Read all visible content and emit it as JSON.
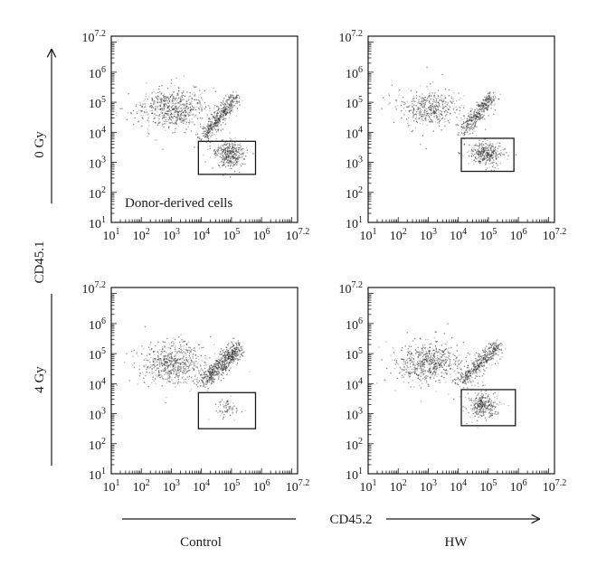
{
  "figure": {
    "row_labels": [
      "0 Gy",
      "4 Gy"
    ],
    "column_labels": [
      "Control",
      "HW"
    ],
    "y_axis_label": "CD45.1",
    "x_axis_label": "CD45.2",
    "gate_annotation": "Donor-derived cells"
  },
  "chart_data": [
    {
      "type": "scatter",
      "panel": "0 Gy / Control",
      "xlabel": "",
      "ylabel": "",
      "x_scale": "log",
      "y_scale": "log",
      "xlim": [
        10,
        15848932
      ],
      "ylim": [
        10,
        15848932
      ],
      "x_ticks": [
        10,
        100,
        1000,
        10000,
        100000,
        1000000,
        15848932
      ],
      "x_tick_labels": [
        [
          "10",
          "1"
        ],
        [
          "10",
          "2"
        ],
        [
          "10",
          "3"
        ],
        [
          "10",
          "4"
        ],
        [
          "10",
          "5"
        ],
        [
          "10",
          "6"
        ],
        [
          "10",
          "7.2"
        ]
      ],
      "y_ticks": [
        10,
        100,
        1000,
        10000,
        100000,
        1000000,
        15848932
      ],
      "y_tick_labels": [
        [
          "10",
          "1"
        ],
        [
          "10",
          "2"
        ],
        [
          "10",
          "3"
        ],
        [
          "10",
          "4"
        ],
        [
          "10",
          "5"
        ],
        [
          "10",
          "6"
        ],
        [
          "10",
          "7.2"
        ]
      ],
      "clusters": [
        {
          "name": "",
          "kind": "blob",
          "center": [
            1000,
            63096
          ],
          "spread": [
            2.2,
            1.6
          ],
          "count": 650
        },
        {
          "name": "",
          "kind": "diagonal",
          "from": [
            10000,
            6310
          ],
          "to": [
            126000,
            158000
          ],
          "width": 0.12,
          "count": 480
        },
        {
          "name": "",
          "kind": "blob",
          "center": [
            79400,
            1995
          ],
          "spread": [
            1.0,
            1.0
          ],
          "count": 380
        }
      ],
      "gate": {
        "x": [
          7943,
          630957
        ],
        "y": [
          398,
          5012
        ]
      },
      "annotation": "Donor-derived cells"
    },
    {
      "type": "scatter",
      "panel": "0 Gy / HW",
      "xlabel": "",
      "ylabel": "",
      "x_scale": "log",
      "y_scale": "log",
      "xlim": [
        10,
        15848932
      ],
      "ylim": [
        10,
        15848932
      ],
      "x_ticks": [
        10,
        100,
        1000,
        10000,
        100000,
        1000000,
        15848932
      ],
      "x_tick_labels": [
        [
          "10",
          "1"
        ],
        [
          "10",
          "2"
        ],
        [
          "10",
          "3"
        ],
        [
          "10",
          "4"
        ],
        [
          "10",
          "5"
        ],
        [
          "10",
          "6"
        ],
        [
          "10",
          "7.2"
        ]
      ],
      "y_ticks": [
        10,
        100,
        1000,
        10000,
        100000,
        1000000,
        15848932
      ],
      "y_tick_labels": [
        [
          "10",
          "1"
        ],
        [
          "10",
          "2"
        ],
        [
          "10",
          "3"
        ],
        [
          "10",
          "4"
        ],
        [
          "10",
          "5"
        ],
        [
          "10",
          "6"
        ],
        [
          "10",
          "7.2"
        ]
      ],
      "clusters": [
        {
          "name": "",
          "kind": "blob",
          "center": [
            1000,
            63096
          ],
          "spread": [
            2.0,
            1.4
          ],
          "count": 450
        },
        {
          "name": "",
          "kind": "diagonal",
          "from": [
            12600,
            10000
          ],
          "to": [
            126000,
            158000
          ],
          "width": 0.12,
          "count": 400
        },
        {
          "name": "",
          "kind": "blob",
          "center": [
            79400,
            1995
          ],
          "spread": [
            1.0,
            0.9
          ],
          "count": 350
        }
      ],
      "gate": {
        "x": [
          12589,
          707946
        ],
        "y": [
          501,
          6310
        ]
      }
    },
    {
      "type": "scatter",
      "panel": "4 Gy / Control",
      "xlabel": "",
      "ylabel": "",
      "x_scale": "log",
      "y_scale": "log",
      "xlim": [
        10,
        15848932
      ],
      "ylim": [
        10,
        15848932
      ],
      "x_ticks": [
        10,
        100,
        1000,
        10000,
        100000,
        1000000,
        15848932
      ],
      "x_tick_labels": [
        [
          "10",
          "1"
        ],
        [
          "10",
          "2"
        ],
        [
          "10",
          "3"
        ],
        [
          "10",
          "4"
        ],
        [
          "10",
          "5"
        ],
        [
          "10",
          "6"
        ],
        [
          "10",
          "7.2"
        ]
      ],
      "y_ticks": [
        10,
        100,
        1000,
        10000,
        100000,
        1000000,
        15848932
      ],
      "y_tick_labels": [
        [
          "10",
          "1"
        ],
        [
          "10",
          "2"
        ],
        [
          "10",
          "3"
        ],
        [
          "10",
          "4"
        ],
        [
          "10",
          "5"
        ],
        [
          "10",
          "6"
        ],
        [
          "10",
          "7.2"
        ]
      ],
      "clusters": [
        {
          "name": "",
          "kind": "blob",
          "center": [
            1000,
            50119
          ],
          "spread": [
            2.2,
            1.5
          ],
          "count": 620
        },
        {
          "name": "",
          "kind": "diagonal",
          "from": [
            10000,
            10000
          ],
          "to": [
            158000,
            158000
          ],
          "width": 0.14,
          "count": 650
        },
        {
          "name": "",
          "kind": "blob",
          "center": [
            63096,
            1585
          ],
          "spread": [
            0.8,
            0.8
          ],
          "count": 70
        }
      ],
      "gate": {
        "x": [
          7943,
          630957
        ],
        "y": [
          316,
          5012
        ]
      }
    },
    {
      "type": "scatter",
      "panel": "4 Gy / HW",
      "xlabel": "",
      "ylabel": "",
      "x_scale": "log",
      "y_scale": "log",
      "xlim": [
        10,
        15848932
      ],
      "ylim": [
        10,
        15848932
      ],
      "x_ticks": [
        10,
        100,
        1000,
        10000,
        100000,
        1000000,
        15848932
      ],
      "x_tick_labels": [
        [
          "10",
          "1"
        ],
        [
          "10",
          "2"
        ],
        [
          "10",
          "3"
        ],
        [
          "10",
          "4"
        ],
        [
          "10",
          "5"
        ],
        [
          "10",
          "6"
        ],
        [
          "10",
          "7.2"
        ]
      ],
      "y_ticks": [
        10,
        100,
        1000,
        10000,
        100000,
        1000000,
        15848932
      ],
      "y_tick_labels": [
        [
          "10",
          "1"
        ],
        [
          "10",
          "2"
        ],
        [
          "10",
          "3"
        ],
        [
          "10",
          "4"
        ],
        [
          "10",
          "5"
        ],
        [
          "10",
          "6"
        ],
        [
          "10",
          "7.2"
        ]
      ],
      "clusters": [
        {
          "name": "",
          "kind": "blob",
          "center": [
            1000,
            50119
          ],
          "spread": [
            2.2,
            1.5
          ],
          "count": 650
        },
        {
          "name": "",
          "kind": "diagonal",
          "from": [
            10000,
            10000
          ],
          "to": [
            200000,
            200000
          ],
          "width": 0.12,
          "count": 450
        },
        {
          "name": "",
          "kind": "blob",
          "center": [
            63096,
            1995
          ],
          "spread": [
            1.0,
            1.0
          ],
          "count": 320
        }
      ],
      "gate": {
        "x": [
          12589,
          794328
        ],
        "y": [
          398,
          6310
        ]
      }
    }
  ]
}
